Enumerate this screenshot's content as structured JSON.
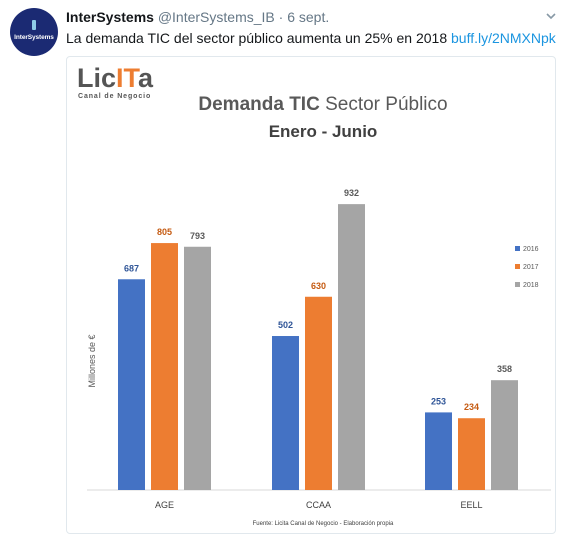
{
  "tweet": {
    "author_name": "InterSystems",
    "author_handle": "@InterSystems_IB",
    "separator": "·",
    "date": "6 sept.",
    "text": "La demanda TIC del sector público aumenta un 25% en 2018 ",
    "link": "buff.ly/2NMXNpk",
    "avatar_text": "InterSystems"
  },
  "logo": {
    "main_part1": "Lic",
    "main_part2": "IT",
    "main_part3": "a",
    "subtitle": "Canal de Negocio"
  },
  "colors": {
    "2016": "#4472c4",
    "2017": "#ed7d31",
    "2018": "#a5a5a5",
    "logo_dark": "#555555",
    "logo_accent": "#ed7d31",
    "title": "#595959"
  },
  "icons": [
    "caret-down-icon"
  ],
  "chart_data": {
    "type": "bar",
    "title_bold": "Demanda TIC",
    "title_rest": " Sector Público",
    "subtitle": "Enero - Junio",
    "ylabel": "Millones de €",
    "xlabel": "",
    "categories": [
      "AGE",
      "CCAA",
      "EELL"
    ],
    "series": [
      {
        "name": "2016",
        "values": [
          687,
          502,
          253
        ]
      },
      {
        "name": "2017",
        "values": [
          805,
          630,
          234
        ]
      },
      {
        "name": "2018",
        "values": [
          793,
          932,
          358
        ]
      }
    ],
    "ylim": [
      0,
      1000
    ],
    "grid": false,
    "legend_position": "right",
    "source": "Fuente: Licita Canal de Negocio - Elaboración propia"
  }
}
